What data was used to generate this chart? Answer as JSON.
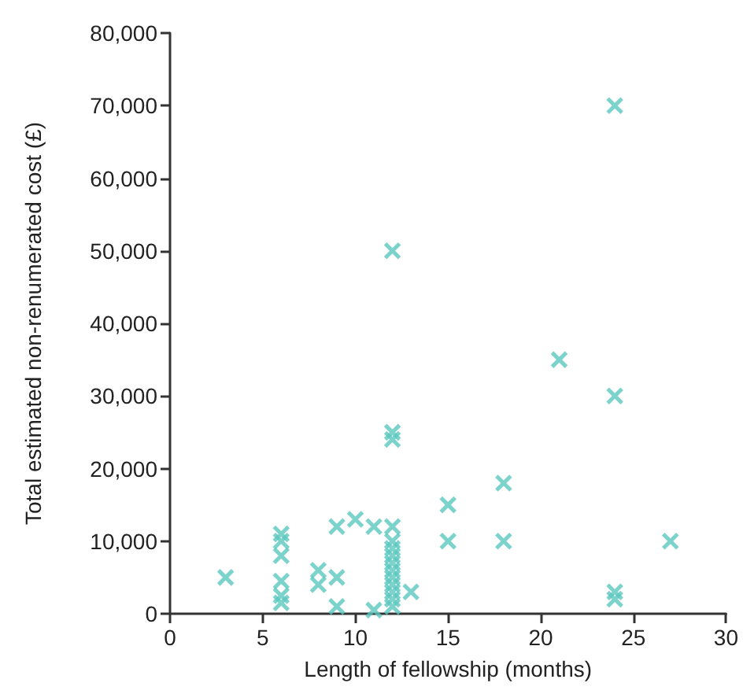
{
  "chart_data": {
    "type": "scatter",
    "xlabel": "Length of fellowship (months)",
    "ylabel": "Total estimated non-renumerated cost (£)",
    "x": [
      3,
      6,
      6,
      6,
      6,
      6,
      6,
      8,
      8,
      9,
      9,
      9,
      10,
      11,
      11,
      12,
      12,
      12,
      12,
      12,
      12,
      12,
      12,
      12,
      12,
      12,
      12,
      12,
      12,
      13,
      15,
      15,
      18,
      18,
      21,
      24,
      24,
      24,
      24,
      27
    ],
    "values": [
      5000,
      11000,
      10000,
      8000,
      4500,
      2500,
      1500,
      6000,
      4000,
      12000,
      5000,
      1000,
      13000,
      12000,
      500,
      50000,
      25000,
      24000,
      12000,
      10000,
      9000,
      8000,
      7000,
      6000,
      5000,
      4000,
      3000,
      2000,
      1000,
      3000,
      15000,
      10000,
      18000,
      10000,
      35000,
      70000,
      30000,
      3000,
      2000,
      10000
    ],
    "color": "#5bc8bf",
    "marker": "cross",
    "grid": false,
    "xlim": [
      0,
      30
    ],
    "xticks": [
      0,
      5,
      10,
      15,
      20,
      25,
      30
    ],
    "ylim": [
      0,
      80000
    ],
    "yticks": [
      {
        "value": 0,
        "label": "0"
      },
      {
        "value": 10000,
        "label": "10,000"
      },
      {
        "value": 20000,
        "label": "20,000"
      },
      {
        "value": 30000,
        "label": "30,000"
      },
      {
        "value": 40000,
        "label": "40,000"
      },
      {
        "value": 50000,
        "label": "50,000"
      },
      {
        "value": 60000,
        "label": "60,000"
      },
      {
        "value": 70000,
        "label": "70,000"
      },
      {
        "value": 80000,
        "label": "80,000"
      }
    ]
  }
}
